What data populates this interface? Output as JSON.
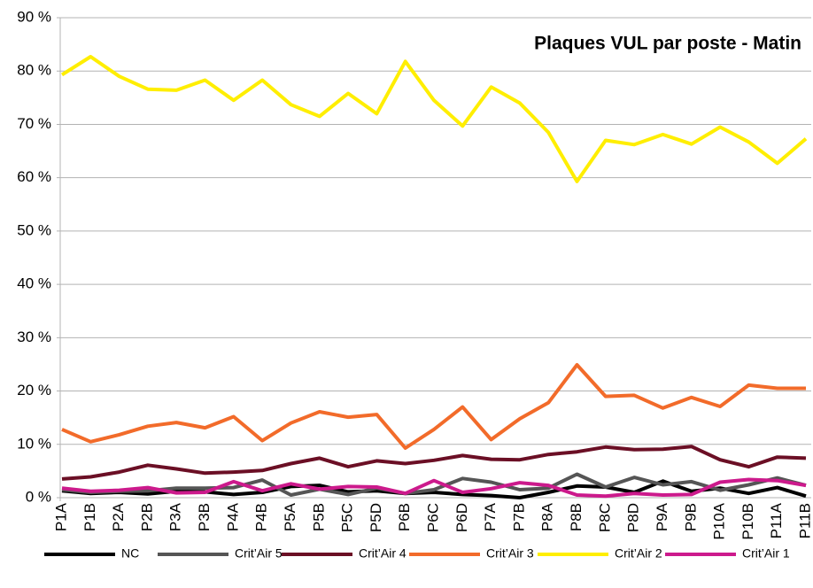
{
  "chart_data": {
    "type": "line",
    "title": "Plaques VUL par poste - Matin",
    "categories": [
      "P1A",
      "P1B",
      "P2A",
      "P2B",
      "P3A",
      "P3B",
      "P4A",
      "P4B",
      "P5A",
      "P5B",
      "P5C",
      "P5D",
      "P6B",
      "P6C",
      "P6D",
      "P7A",
      "P7B",
      "P8A",
      "P8B",
      "P8C",
      "P8D",
      "P9A",
      "P9B",
      "P10A",
      "P10B",
      "P11A",
      "P11B"
    ],
    "series": [
      {
        "name": "NC",
        "color": "#000000",
        "values": [
          1.3,
          0.8,
          1.0,
          0.7,
          1.2,
          1.1,
          0.6,
          1.0,
          2.1,
          2.3,
          1.1,
          1.3,
          0.8,
          1.0,
          0.6,
          0.4,
          0.0,
          1.0,
          2.2,
          2.0,
          1.0,
          3.1,
          1.2,
          1.8,
          0.8,
          1.9,
          0.3
        ]
      },
      {
        "name": "Crit’Air 5",
        "color": "#555555",
        "values": [
          1.5,
          1.0,
          1.2,
          1.3,
          1.8,
          1.8,
          1.9,
          3.3,
          0.5,
          1.6,
          0.6,
          1.8,
          0.8,
          1.5,
          3.6,
          2.9,
          1.5,
          1.8,
          4.4,
          2.0,
          3.8,
          2.4,
          3.0,
          1.4,
          2.4,
          3.7,
          2.3
        ]
      },
      {
        "name": "Crit’Air 4",
        "color": "#6b0f25",
        "values": [
          3.5,
          3.9,
          4.8,
          6.1,
          5.4,
          4.6,
          4.8,
          5.1,
          6.4,
          7.4,
          5.8,
          6.9,
          6.4,
          7.0,
          7.9,
          7.2,
          7.1,
          8.1,
          8.6,
          9.5,
          9.0,
          9.1,
          9.6,
          7.1,
          5.8,
          7.6,
          7.4
        ]
      },
      {
        "name": "Crit’Air 3",
        "color": "#f26b2a",
        "values": [
          12.8,
          10.5,
          11.8,
          13.4,
          14.1,
          13.1,
          15.2,
          10.7,
          14.0,
          16.1,
          15.1,
          15.6,
          9.3,
          12.8,
          17.0,
          10.9,
          14.8,
          17.8,
          24.9,
          19.0,
          19.2,
          16.8,
          18.8,
          17.1,
          21.1,
          20.5,
          20.5
        ]
      },
      {
        "name": "Crit’Air 2",
        "color": "#ffee00",
        "values": [
          79.3,
          82.7,
          79.0,
          76.6,
          76.4,
          78.3,
          74.5,
          78.3,
          73.7,
          71.5,
          75.8,
          72.0,
          81.8,
          74.5,
          69.7,
          77.0,
          74.0,
          68.5,
          59.3,
          67.0,
          66.2,
          68.1,
          66.3,
          69.5,
          66.7,
          62.7,
          67.3
        ]
      },
      {
        "name": "Crit’Air 1",
        "color": "#cc1a8c",
        "values": [
          1.8,
          1.2,
          1.4,
          1.9,
          0.9,
          1.0,
          3.0,
          1.3,
          2.6,
          1.6,
          2.1,
          2.0,
          0.8,
          3.2,
          1.0,
          1.7,
          2.8,
          2.3,
          0.5,
          0.3,
          0.8,
          0.5,
          0.6,
          2.9,
          3.4,
          3.2,
          2.3
        ]
      }
    ],
    "ylim": [
      0,
      90
    ],
    "yticks": [
      {
        "value": 0,
        "label": "0 %"
      },
      {
        "value": 10,
        "label": "10 %"
      },
      {
        "value": 20,
        "label": "20 %"
      },
      {
        "value": 30,
        "label": "30 %"
      },
      {
        "value": 40,
        "label": "40 %"
      },
      {
        "value": 50,
        "label": "50 %"
      },
      {
        "value": 60,
        "label": "60 %"
      },
      {
        "value": 70,
        "label": "70 %"
      },
      {
        "value": 80,
        "label": "80 %"
      },
      {
        "value": 90,
        "label": "90 %"
      }
    ],
    "grid": true,
    "legend": "bottom"
  }
}
